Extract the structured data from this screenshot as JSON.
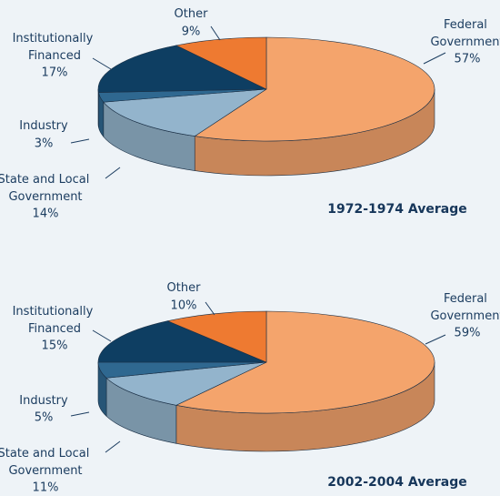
{
  "chart_data": [
    {
      "type": "pie",
      "title": "1972-1974 Average",
      "categories": [
        "Federal Government",
        "State and Local Government",
        "Industry",
        "Institutionally Financed",
        "Other"
      ],
      "values": [
        57,
        14,
        3,
        17,
        9
      ],
      "value_labels": [
        "57%",
        "14%",
        "3%",
        "17%",
        "9%"
      ],
      "colors": [
        "#f4a46c",
        "#93b4cc",
        "#2f6890",
        "#0e3e62",
        "#ee7a31"
      ]
    },
    {
      "type": "pie",
      "title": "2002-2004 Average",
      "categories": [
        "Federal Government",
        "State and Local Government",
        "Industry",
        "Institutionally Financed",
        "Other"
      ],
      "values": [
        59,
        11,
        5,
        15,
        10
      ],
      "value_labels": [
        "59%",
        "11%",
        "5%",
        "15%",
        "10%"
      ],
      "colors": [
        "#f4a46c",
        "#93b4cc",
        "#2f6890",
        "#0e3e62",
        "#ee7a31"
      ]
    }
  ]
}
